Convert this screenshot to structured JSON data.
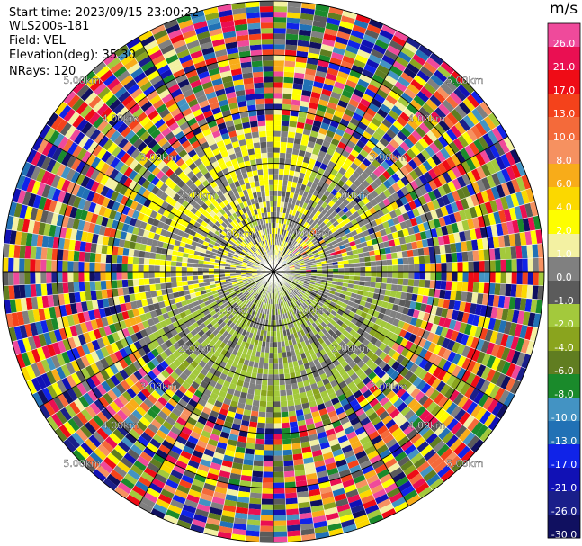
{
  "info": {
    "start_time": "Start time: 2023/09/15 23:00:22",
    "instrument": "WLS200s-181",
    "field": "Field: VEL",
    "elevation": "Elevation(deg): 35.30",
    "nrays": "NRays: 120"
  },
  "colorbar": {
    "unit": "m/s",
    "ticks": [
      "26.0",
      "21.0",
      "17.0",
      "13.0",
      "10.0",
      "8.0",
      "6.0",
      "4.0",
      "2.0",
      "1.0",
      "0.0",
      "-1.0",
      "-2.0",
      "-4.0",
      "-6.0",
      "-8.0",
      "-10.0",
      "-13.0",
      "-17.0",
      "-21.0",
      "-26.0",
      "-30.0"
    ],
    "colors": [
      "#ef4a9b",
      "#ea0f52",
      "#ef0c16",
      "#f4421b",
      "#f46a3a",
      "#f69160",
      "#f8ac19",
      "#fbd800",
      "#fefe00",
      "#f3f1a2",
      "#808080",
      "#5b5b5b",
      "#a3c93c",
      "#8aa41e",
      "#607d21",
      "#1a8a2b",
      "#4393c3",
      "#2171b5",
      "#1023e8",
      "#1111b5",
      "#1a1f8a",
      "#101060"
    ]
  },
  "range_labels": {
    "ring1": "1.00km",
    "ring2": "2.00km",
    "ring3": "3.00km",
    "ring4": "4.00km",
    "ring5": "5.00km"
  },
  "chart_data": {
    "type": "heatmap",
    "projection": "polar PPI",
    "field": "VEL",
    "units": "m/s",
    "nrays": 120,
    "max_range_km": 5.0,
    "range_rings_km": [
      1,
      2,
      3,
      4,
      5
    ],
    "inner_zone": {
      "max_range_km": 2.6,
      "dominant_bins": [
        "0.0",
        "-1.0",
        "-2.0",
        "-4.0",
        "2.0",
        "1.0"
      ],
      "yellow_sector_deg": [
        250,
        20
      ],
      "green_sector_deg": [
        90,
        250
      ]
    },
    "outer_zone": {
      "min_range_km": 2.6,
      "pattern": "noisy, all colorbar bins"
    }
  }
}
